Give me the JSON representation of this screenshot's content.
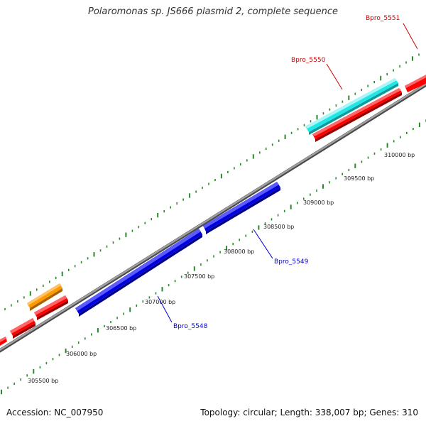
{
  "title": "Polaromonas sp. JS666 plasmid 2, complete sequence",
  "footer": {
    "accession": "Accession: NC_007950",
    "summary": "Topology: circular; Length: 338,007 bp; Genes: 310"
  },
  "colors": {
    "backbone": "#8a8a8a",
    "tick": "#2a8a2a",
    "red": "#ff0000",
    "blue": "#0000dd",
    "cyan": "#22e6e6",
    "orange": "#ff9900"
  },
  "scale_labels": [
    "305500 bp",
    "306000 bp",
    "306500 bp",
    "307000 bp",
    "307500 bp",
    "308000 bp",
    "308500 bp",
    "309000 bp",
    "309500 bp",
    "310000 bp"
  ],
  "gene_labels": [
    "Bpro_5551",
    "Bpro_5550",
    "Bpro_5549",
    "Bpro_5548"
  ]
}
